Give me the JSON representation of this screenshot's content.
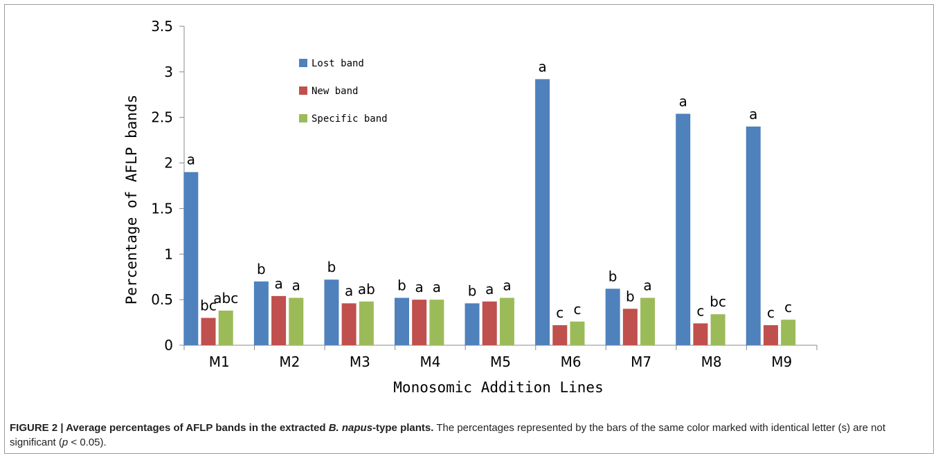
{
  "chart_data": {
    "type": "bar",
    "title": "",
    "xlabel": "Monosomic Addition Lines",
    "ylabel": "Percentage of AFLP bands",
    "ylim": [
      0,
      3.5
    ],
    "yticks": [
      "0",
      "0.5",
      "1",
      "1.5",
      "2",
      "2.5",
      "3",
      "3.5"
    ],
    "grid": false,
    "legend_position": "top-left",
    "categories": [
      "M1",
      "M2",
      "M3",
      "M4",
      "M5",
      "M6",
      "M7",
      "M8",
      "M9"
    ],
    "series": [
      {
        "name": "Lost band",
        "color": "#4F81BD",
        "values": [
          1.9,
          0.7,
          0.72,
          0.52,
          0.46,
          2.92,
          0.62,
          2.54,
          2.4
        ],
        "labels": [
          "a",
          "b",
          "b",
          "b",
          "b",
          "a",
          "b",
          "a",
          "a"
        ]
      },
      {
        "name": "New band",
        "color": "#C0504D",
        "values": [
          0.3,
          0.54,
          0.46,
          0.5,
          0.48,
          0.22,
          0.4,
          0.24,
          0.22
        ],
        "labels": [
          "bc",
          "a",
          "a",
          "a",
          "a",
          "c",
          "b",
          "c",
          "c"
        ]
      },
      {
        "name": "Specific band",
        "color": "#9BBB59",
        "values": [
          0.38,
          0.52,
          0.48,
          0.5,
          0.52,
          0.26,
          0.52,
          0.34,
          0.28
        ],
        "labels": [
          "abc",
          "a",
          "ab",
          "a",
          "a",
          "c",
          "a",
          "bc",
          "c"
        ]
      }
    ]
  },
  "caption": {
    "label": "FIGURE 2 | ",
    "title_pre": "Average percentages of AFLP bands in the extracted ",
    "title_italic": "B. napus",
    "title_post": "-type plants.",
    "body_pre": " The percentages represented by the bars of the same color marked with identical letter (s) are not significant (",
    "body_italic": "p",
    "body_post": " < 0.05)."
  }
}
